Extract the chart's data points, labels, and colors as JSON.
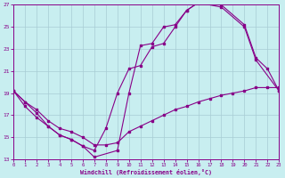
{
  "xlabel": "Windchill (Refroidissement éolien,°C)",
  "xlim": [
    0,
    23
  ],
  "ylim": [
    13,
    27
  ],
  "xticks": [
    0,
    1,
    2,
    3,
    4,
    5,
    6,
    7,
    8,
    9,
    10,
    11,
    12,
    13,
    14,
    15,
    16,
    17,
    18,
    19,
    20,
    21,
    22,
    23
  ],
  "yticks": [
    13,
    15,
    17,
    19,
    21,
    23,
    25,
    27
  ],
  "background_color": "#c8eef0",
  "grid_color": "#a8ccd4",
  "line_color": "#880088",
  "series": [
    {
      "x": [
        0,
        1,
        2,
        3,
        4,
        5,
        6,
        7,
        9,
        10,
        11,
        12,
        13,
        14,
        15,
        16,
        17,
        18,
        20,
        21,
        22,
        23
      ],
      "y": [
        19.2,
        18.2,
        17.2,
        16.0,
        15.2,
        14.8,
        14.2,
        13.2,
        13.8,
        19.0,
        23.3,
        23.5,
        25.0,
        25.2,
        26.5,
        27.2,
        27.5,
        27.0,
        25.2,
        22.2,
        21.2,
        19.2
      ]
    },
    {
      "x": [
        0,
        1,
        2,
        3,
        4,
        5,
        6,
        7,
        8,
        9,
        10,
        11,
        12,
        13,
        14,
        15,
        16,
        18,
        20,
        21,
        23
      ],
      "y": [
        19.2,
        17.8,
        16.8,
        16.0,
        15.2,
        14.8,
        14.2,
        13.8,
        15.8,
        19.0,
        21.2,
        21.5,
        23.2,
        23.5,
        25.0,
        26.5,
        27.2,
        26.8,
        25.0,
        22.0,
        19.2
      ]
    },
    {
      "x": [
        0,
        1,
        2,
        3,
        4,
        5,
        6,
        7,
        8,
        9,
        10,
        11,
        12,
        13,
        14,
        15,
        16,
        17,
        18,
        19,
        20,
        21,
        22,
        23
      ],
      "y": [
        19.2,
        18.2,
        17.5,
        16.5,
        15.8,
        15.5,
        15.0,
        14.3,
        14.3,
        14.5,
        15.5,
        16.0,
        16.5,
        17.0,
        17.5,
        17.8,
        18.2,
        18.5,
        18.8,
        19.0,
        19.2,
        19.5,
        19.5,
        19.5
      ]
    }
  ]
}
